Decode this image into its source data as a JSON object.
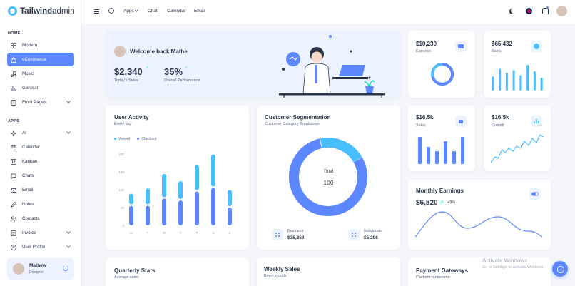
{
  "brand": {
    "bold": "Tailwind",
    "light": "admin"
  },
  "sidebar": {
    "section_home": "HOME",
    "section_apps": "APPS",
    "home_items": [
      {
        "label": "Modern",
        "icon": "grid-icon"
      },
      {
        "label": "eCommerce",
        "icon": "basket-icon"
      },
      {
        "label": "Music",
        "icon": "music-icon"
      },
      {
        "label": "General",
        "icon": "chart-icon"
      },
      {
        "label": "Front Pages",
        "icon": "page-icon"
      }
    ],
    "app_items": [
      {
        "label": "AI",
        "icon": "sparkle-icon"
      },
      {
        "label": "Calendar",
        "icon": "calendar-icon"
      },
      {
        "label": "Kanban",
        "icon": "kanban-icon"
      },
      {
        "label": "Chats",
        "icon": "chat-icon"
      },
      {
        "label": "Email",
        "icon": "mail-icon"
      },
      {
        "label": "Notes",
        "icon": "notes-icon"
      },
      {
        "label": "Contacts",
        "icon": "contacts-icon"
      },
      {
        "label": "Invoice",
        "icon": "invoice-icon"
      },
      {
        "label": "User Profile",
        "icon": "user-icon"
      }
    ],
    "profile": {
      "name": "Mathew",
      "role": "Designer"
    }
  },
  "header": {
    "links": [
      "Apps",
      "Chat",
      "Calendar",
      "Email"
    ]
  },
  "welcome": {
    "title": "Welcome back Mathe",
    "sales_value": "$2,340",
    "sales_label": "Today's Sales",
    "perf_value": "35%",
    "perf_label": "Overall Performance"
  },
  "expense": {
    "value": "$10,230",
    "label": "Expense",
    "ring_fraction": 0.7
  },
  "sales_top": {
    "value": "$65,432",
    "label": "Sales",
    "bars": [
      0.55,
      0.85,
      0.7,
      0.8,
      0.6,
      1.0,
      0.75,
      0.5
    ]
  },
  "user_activity": {
    "title": "User Activity",
    "subtitle": "Every day",
    "legend": [
      "Viewed",
      "Checkout"
    ],
    "y_ticks": [
      "200",
      "150",
      "100",
      "50",
      "0"
    ],
    "x_ticks": [
      "M",
      "T",
      "W",
      "T",
      "F",
      "S",
      "S"
    ]
  },
  "segmentation": {
    "title": "Customer Segmentation",
    "subtitle": "Customer Category Breakdown",
    "total_label": "Total",
    "total_value": "100",
    "business_label": "Business",
    "business_value": "$36,358",
    "individual_label": "Individuals",
    "individual_value": "$5,296"
  },
  "sales_mid": {
    "value": "$16.5k",
    "label": "Sales"
  },
  "growth": {
    "value": "$16.5k",
    "label": "Growth"
  },
  "monthly": {
    "title": "Monthly Earnings",
    "value": "$6,820",
    "change": "+9%"
  },
  "bottom": {
    "quarterly_title": "Quarterly Stats",
    "quarterly_sub": "Average sales",
    "weekly_title": "Weekly Sales",
    "weekly_sub": "Every month",
    "payment_title": "Payment Gateways",
    "payment_sub": "Platform for income"
  },
  "watermark": {
    "line1": "Activate Windows",
    "line2": "Go to Settings to activate Windows"
  },
  "chart_data": [
    {
      "type": "bar",
      "title": "User Activity",
      "categories": [
        "M",
        "T",
        "W",
        "T",
        "F",
        "S",
        "S"
      ],
      "ylim": [
        0,
        200
      ],
      "series": [
        {
          "name": "Viewed",
          "values": [
            30,
            45,
            65,
            50,
            70,
            90,
            45
          ]
        },
        {
          "name": "Checkout",
          "values": [
            55,
            55,
            75,
            70,
            95,
            105,
            50
          ]
        }
      ]
    },
    {
      "type": "pie",
      "title": "Customer Segmentation",
      "categories": [
        "Business",
        "Individuals"
      ],
      "values": [
        80,
        20
      ]
    }
  ],
  "colors": {
    "primary": "#5d87ff",
    "secondary": "#49beff",
    "success": "#13deb9",
    "light_primary": "#ecf2ff"
  }
}
